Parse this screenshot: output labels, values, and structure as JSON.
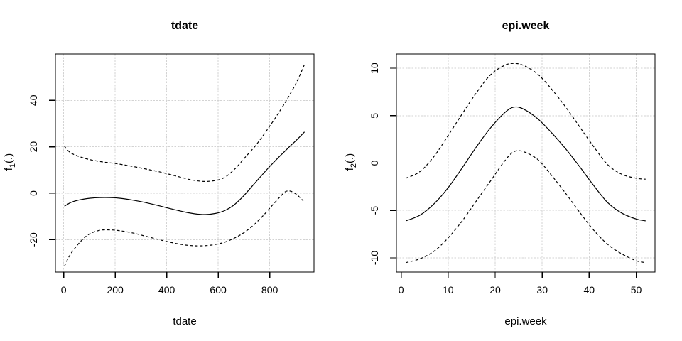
{
  "window": {
    "background": "#ffffff"
  },
  "colors": {
    "foreground": "#000000",
    "grid": "#d3d3d3",
    "background": "#ffffff"
  },
  "chart_data": [
    {
      "type": "line",
      "title": "tdate",
      "xlabel": "tdate",
      "ylabel": {
        "base": "f",
        "sub": "1",
        "args": "(.)"
      },
      "xlim": [
        -32,
        972
      ],
      "ylim": [
        -34,
        60
      ],
      "xticks": [
        0,
        200,
        400,
        600,
        800
      ],
      "yticks": [
        -20,
        0,
        20,
        40
      ],
      "grid": true,
      "legend": "none",
      "series": [
        {
          "name": "estimate",
          "style": "solid",
          "points": [
            [
              3,
              -5.6
            ],
            [
              30,
              -3.9
            ],
            [
              60,
              -2.9
            ],
            [
              100,
              -2.2
            ],
            [
              140,
              -1.9
            ],
            [
              180,
              -1.9
            ],
            [
              220,
              -2.2
            ],
            [
              270,
              -3.0
            ],
            [
              320,
              -4.1
            ],
            [
              370,
              -5.4
            ],
            [
              420,
              -6.8
            ],
            [
              470,
              -8.1
            ],
            [
              510,
              -8.9
            ],
            [
              550,
              -9.2
            ],
            [
              590,
              -8.7
            ],
            [
              625,
              -7.5
            ],
            [
              660,
              -5.2
            ],
            [
              695,
              -1.6
            ],
            [
              730,
              2.8
            ],
            [
              765,
              7.2
            ],
            [
              800,
              11.5
            ],
            [
              835,
              15.5
            ],
            [
              870,
              19.3
            ],
            [
              905,
              23.0
            ],
            [
              935,
              26.4
            ]
          ]
        },
        {
          "name": "upper-ci",
          "style": "dashed",
          "points": [
            [
              3,
              20.2
            ],
            [
              25,
              17.6
            ],
            [
              60,
              15.8
            ],
            [
              100,
              14.5
            ],
            [
              150,
              13.5
            ],
            [
              200,
              12.8
            ],
            [
              260,
              11.7
            ],
            [
              320,
              10.4
            ],
            [
              380,
              9.0
            ],
            [
              440,
              7.3
            ],
            [
              490,
              5.9
            ],
            [
              540,
              5.1
            ],
            [
              585,
              5.4
            ],
            [
              625,
              6.8
            ],
            [
              665,
              10.5
            ],
            [
              705,
              15.5
            ],
            [
              745,
              20.5
            ],
            [
              785,
              26.5
            ],
            [
              825,
              33.0
            ],
            [
              865,
              40.0
            ],
            [
              905,
              48.0
            ],
            [
              935,
              55.5
            ]
          ]
        },
        {
          "name": "lower-ci",
          "style": "dashed",
          "points": [
            [
              3,
              -31.5
            ],
            [
              20,
              -27.5
            ],
            [
              40,
              -24.2
            ],
            [
              70,
              -20.3
            ],
            [
              100,
              -17.6
            ],
            [
              140,
              -16.0
            ],
            [
              180,
              -15.8
            ],
            [
              220,
              -16.2
            ],
            [
              270,
              -17.2
            ],
            [
              320,
              -18.6
            ],
            [
              370,
              -20.0
            ],
            [
              420,
              -21.3
            ],
            [
              470,
              -22.3
            ],
            [
              520,
              -22.7
            ],
            [
              570,
              -22.4
            ],
            [
              620,
              -21.3
            ],
            [
              660,
              -19.5
            ],
            [
              700,
              -17.0
            ],
            [
              740,
              -13.5
            ],
            [
              780,
              -9.0
            ],
            [
              815,
              -4.6
            ],
            [
              845,
              -1.0
            ],
            [
              862,
              0.7
            ],
            [
              880,
              0.9
            ],
            [
              900,
              -0.2
            ],
            [
              915,
              -1.6
            ],
            [
              930,
              -3.3
            ]
          ]
        }
      ]
    },
    {
      "type": "line",
      "title": "epi.week",
      "xlabel": "epi.week",
      "ylabel": {
        "base": "f",
        "sub": "2",
        "args": "(.)"
      },
      "xlim": [
        -1,
        54
      ],
      "ylim": [
        -11.5,
        11.5
      ],
      "xticks": [
        0,
        10,
        20,
        30,
        40,
        50
      ],
      "yticks": [
        -10,
        -5,
        0,
        5,
        10
      ],
      "grid": true,
      "legend": "none",
      "series": [
        {
          "name": "estimate",
          "style": "solid",
          "points": [
            [
              1,
              -6.1
            ],
            [
              4,
              -5.5
            ],
            [
              7,
              -4.3
            ],
            [
              10,
              -2.6
            ],
            [
              13,
              -0.5
            ],
            [
              16,
              1.7
            ],
            [
              19,
              3.7
            ],
            [
              22,
              5.3
            ],
            [
              24,
              5.9
            ],
            [
              26,
              5.7
            ],
            [
              29,
              4.7
            ],
            [
              32,
              3.2
            ],
            [
              35,
              1.5
            ],
            [
              38,
              -0.4
            ],
            [
              41,
              -2.4
            ],
            [
              44,
              -4.2
            ],
            [
              47,
              -5.3
            ],
            [
              50,
              -5.9
            ],
            [
              52,
              -6.1
            ]
          ]
        },
        {
          "name": "upper-ci",
          "style": "dashed",
          "points": [
            [
              1,
              -1.6
            ],
            [
              4,
              -0.9
            ],
            [
              7,
              0.7
            ],
            [
              10,
              2.9
            ],
            [
              13,
              5.2
            ],
            [
              16,
              7.4
            ],
            [
              19,
              9.3
            ],
            [
              22,
              10.3
            ],
            [
              24,
              10.5
            ],
            [
              26,
              10.3
            ],
            [
              29,
              9.4
            ],
            [
              32,
              7.8
            ],
            [
              35,
              5.9
            ],
            [
              38,
              3.8
            ],
            [
              41,
              1.7
            ],
            [
              44,
              -0.2
            ],
            [
              47,
              -1.2
            ],
            [
              50,
              -1.6
            ],
            [
              52,
              -1.7
            ]
          ]
        },
        {
          "name": "lower-ci",
          "style": "dashed",
          "points": [
            [
              1,
              -10.5
            ],
            [
              4,
              -10.1
            ],
            [
              7,
              -9.3
            ],
            [
              10,
              -7.9
            ],
            [
              13,
              -6.1
            ],
            [
              16,
              -4.0
            ],
            [
              19,
              -1.9
            ],
            [
              22,
              0.2
            ],
            [
              24,
              1.2
            ],
            [
              26,
              1.2
            ],
            [
              29,
              0.4
            ],
            [
              32,
              -1.3
            ],
            [
              35,
              -3.2
            ],
            [
              38,
              -5.2
            ],
            [
              41,
              -7.1
            ],
            [
              44,
              -8.6
            ],
            [
              47,
              -9.6
            ],
            [
              50,
              -10.3
            ],
            [
              52,
              -10.5
            ]
          ]
        }
      ]
    }
  ]
}
